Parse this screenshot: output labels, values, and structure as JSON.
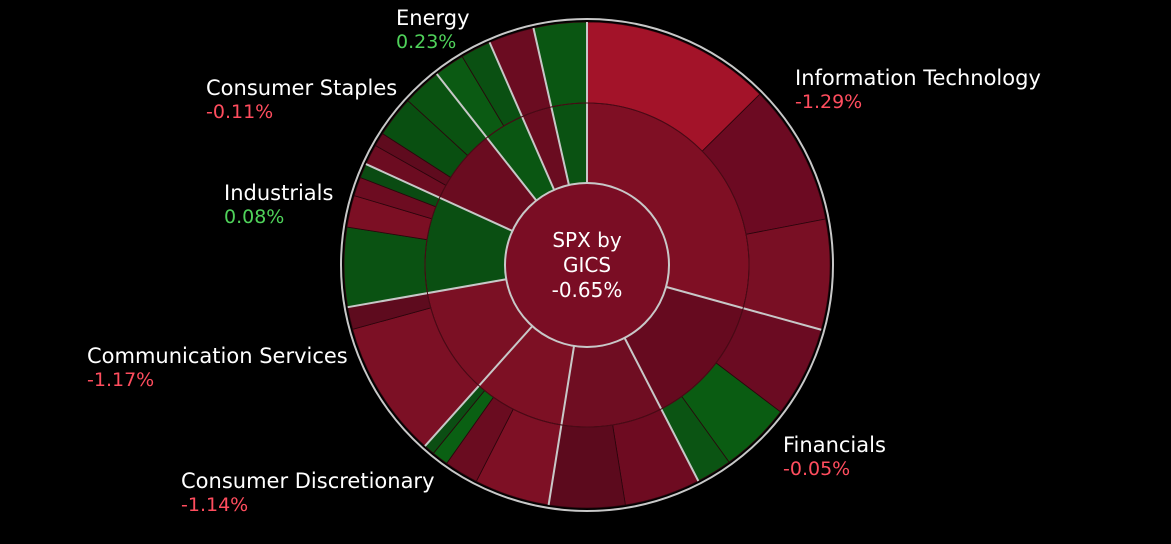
{
  "chart_data": {
    "type": "sunburst",
    "center": {
      "title_line1": "SPX by",
      "title_line2": "GICS",
      "change": "-0.65%"
    },
    "sectors": [
      {
        "name": "Information Technology",
        "change": "-1.29%",
        "weight": 0.29,
        "color": "#7f0f24",
        "children": [
          {
            "weight": 0.43,
            "color": "#a31329"
          },
          {
            "weight": 0.32,
            "color": "#6c0a22"
          },
          {
            "weight": 0.25,
            "color": "#790f24"
          }
        ]
      },
      {
        "name": "Financials",
        "change": "-0.05%",
        "weight": 0.13,
        "color": "#660a1f",
        "children": [
          {
            "weight": 0.46,
            "color": "#6b0b22"
          },
          {
            "weight": 0.36,
            "color": "#0a5c12"
          },
          {
            "weight": 0.18,
            "color": "#0b5413"
          }
        ]
      },
      {
        "name": "Consumer Discretionary",
        "change": "-1.14%",
        "weight": 0.1,
        "color": "#6f0d22",
        "children": [
          {
            "weight": 0.5,
            "color": "#6e0b21"
          },
          {
            "weight": 0.5,
            "color": "#5c0a1d"
          }
        ]
      },
      {
        "name": "Communication Services",
        "change": "-1.17%",
        "weight": 0.09,
        "color": "#7d1024",
        "children": [
          {
            "weight": 0.55,
            "color": "#7e1025"
          },
          {
            "weight": 0.25,
            "color": "#6a0c20"
          },
          {
            "weight": 0.12,
            "color": "#0a6013"
          },
          {
            "weight": 0.08,
            "color": "#0b4e13"
          }
        ]
      },
      {
        "name": "Consumer Staples",
        "change": "-0.11%",
        "weight": 0.105,
        "color": "#7b1024",
        "children": [
          {
            "weight": 0.86,
            "color": "#7c1025"
          },
          {
            "weight": 0.14,
            "color": "#5e0b1e"
          }
        ]
      },
      {
        "name": "Industrials",
        "change": "0.08%",
        "weight": 0.095,
        "color": "#0a4f12",
        "children": [
          {
            "weight": 0.55,
            "color": "#0a5212"
          },
          {
            "weight": 0.22,
            "color": "#7c0f24"
          },
          {
            "weight": 0.13,
            "color": "#6d0c21"
          },
          {
            "weight": 0.1,
            "color": "#0a4b12"
          }
        ]
      },
      {
        "name": "Energy",
        "change": "0.23%",
        "weight": 0.075,
        "color": "#6a0c20",
        "children": [
          {
            "weight": 0.18,
            "color": "#6c0c21"
          },
          {
            "weight": 0.12,
            "color": "#5f0b1e"
          },
          {
            "weight": 0.36,
            "color": "#094f11"
          },
          {
            "weight": 0.34,
            "color": "#0a5211"
          }
        ]
      },
      {
        "name": "",
        "change": "",
        "weight": 0.04,
        "color": "#0a5612",
        "children": [
          {
            "weight": 0.5,
            "color": "#0b5a13"
          },
          {
            "weight": 0.5,
            "color": "#0a5012"
          }
        ]
      },
      {
        "name": "",
        "change": "",
        "weight": 0.03,
        "color": "#6a0c20",
        "children": [
          {
            "weight": 1,
            "color": "#6b0c21"
          }
        ]
      },
      {
        "name": "",
        "change": "",
        "weight": 0.035,
        "color": "#0a5212",
        "children": [
          {
            "weight": 1,
            "color": "#0a5612"
          }
        ]
      }
    ],
    "labels": [
      {
        "sector": "Information Technology",
        "change": "-1.29%",
        "sign": "neg"
      },
      {
        "sector": "Financials",
        "change": "-0.05%",
        "sign": "neg"
      },
      {
        "sector": "Consumer Discretionary",
        "change": "-1.14%",
        "sign": "neg"
      },
      {
        "sector": "Communication Services",
        "change": "-1.17%",
        "sign": "neg"
      },
      {
        "sector": "Industrials",
        "change": "0.08%",
        "sign": "pos"
      },
      {
        "sector": "Consumer Staples",
        "change": "-0.11%",
        "sign": "neg"
      },
      {
        "sector": "Energy",
        "change": "0.23%",
        "sign": "pos"
      }
    ],
    "colors": {
      "background": "#000000",
      "divider": "#c8c8c8",
      "negative_text": "#ff4d5e",
      "positive_text": "#4fd25a"
    }
  }
}
